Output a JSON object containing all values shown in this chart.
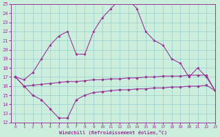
{
  "x": [
    0,
    1,
    2,
    3,
    4,
    5,
    6,
    7,
    8,
    9,
    10,
    11,
    12,
    13,
    14,
    15,
    16,
    17,
    18,
    19,
    20,
    21,
    22,
    23
  ],
  "temp": [
    17,
    16.7,
    17.5,
    19.0,
    20.5,
    21.5,
    22.0,
    19.5,
    19.5,
    22.0,
    23.5,
    24.5,
    25.5,
    25.5,
    24.5,
    22.0,
    21.0,
    20.5,
    19.0,
    18.5,
    17.0,
    18.0,
    17.0,
    15.5
  ],
  "windchill1": [
    17,
    16.0,
    16.1,
    16.2,
    16.3,
    16.4,
    16.5,
    16.5,
    16.6,
    16.7,
    16.7,
    16.8,
    16.8,
    16.9,
    16.9,
    17.0,
    17.0,
    17.1,
    17.1,
    17.1,
    17.2,
    17.2,
    17.2,
    15.5
  ],
  "windchill2": [
    17,
    16.0,
    15.0,
    14.5,
    13.5,
    12.5,
    12.5,
    14.5,
    15.0,
    15.3,
    15.4,
    15.5,
    15.6,
    15.6,
    15.7,
    15.7,
    15.8,
    15.8,
    15.9,
    15.9,
    16.0,
    16.0,
    16.1,
    15.5
  ],
  "bg_color": "#cceedd",
  "line_color": "#993399",
  "grid_color": "#99cccc",
  "xlabel": "Windchill (Refroidissement éolien,°C)",
  "ylim": [
    12,
    25
  ],
  "xlim": [
    -0.5,
    23
  ],
  "yticks": [
    12,
    13,
    14,
    15,
    16,
    17,
    18,
    19,
    20,
    21,
    22,
    23,
    24,
    25
  ],
  "xticks": [
    0,
    1,
    2,
    3,
    4,
    5,
    6,
    7,
    8,
    9,
    10,
    11,
    12,
    13,
    14,
    15,
    16,
    17,
    18,
    19,
    20,
    21,
    22,
    23
  ]
}
